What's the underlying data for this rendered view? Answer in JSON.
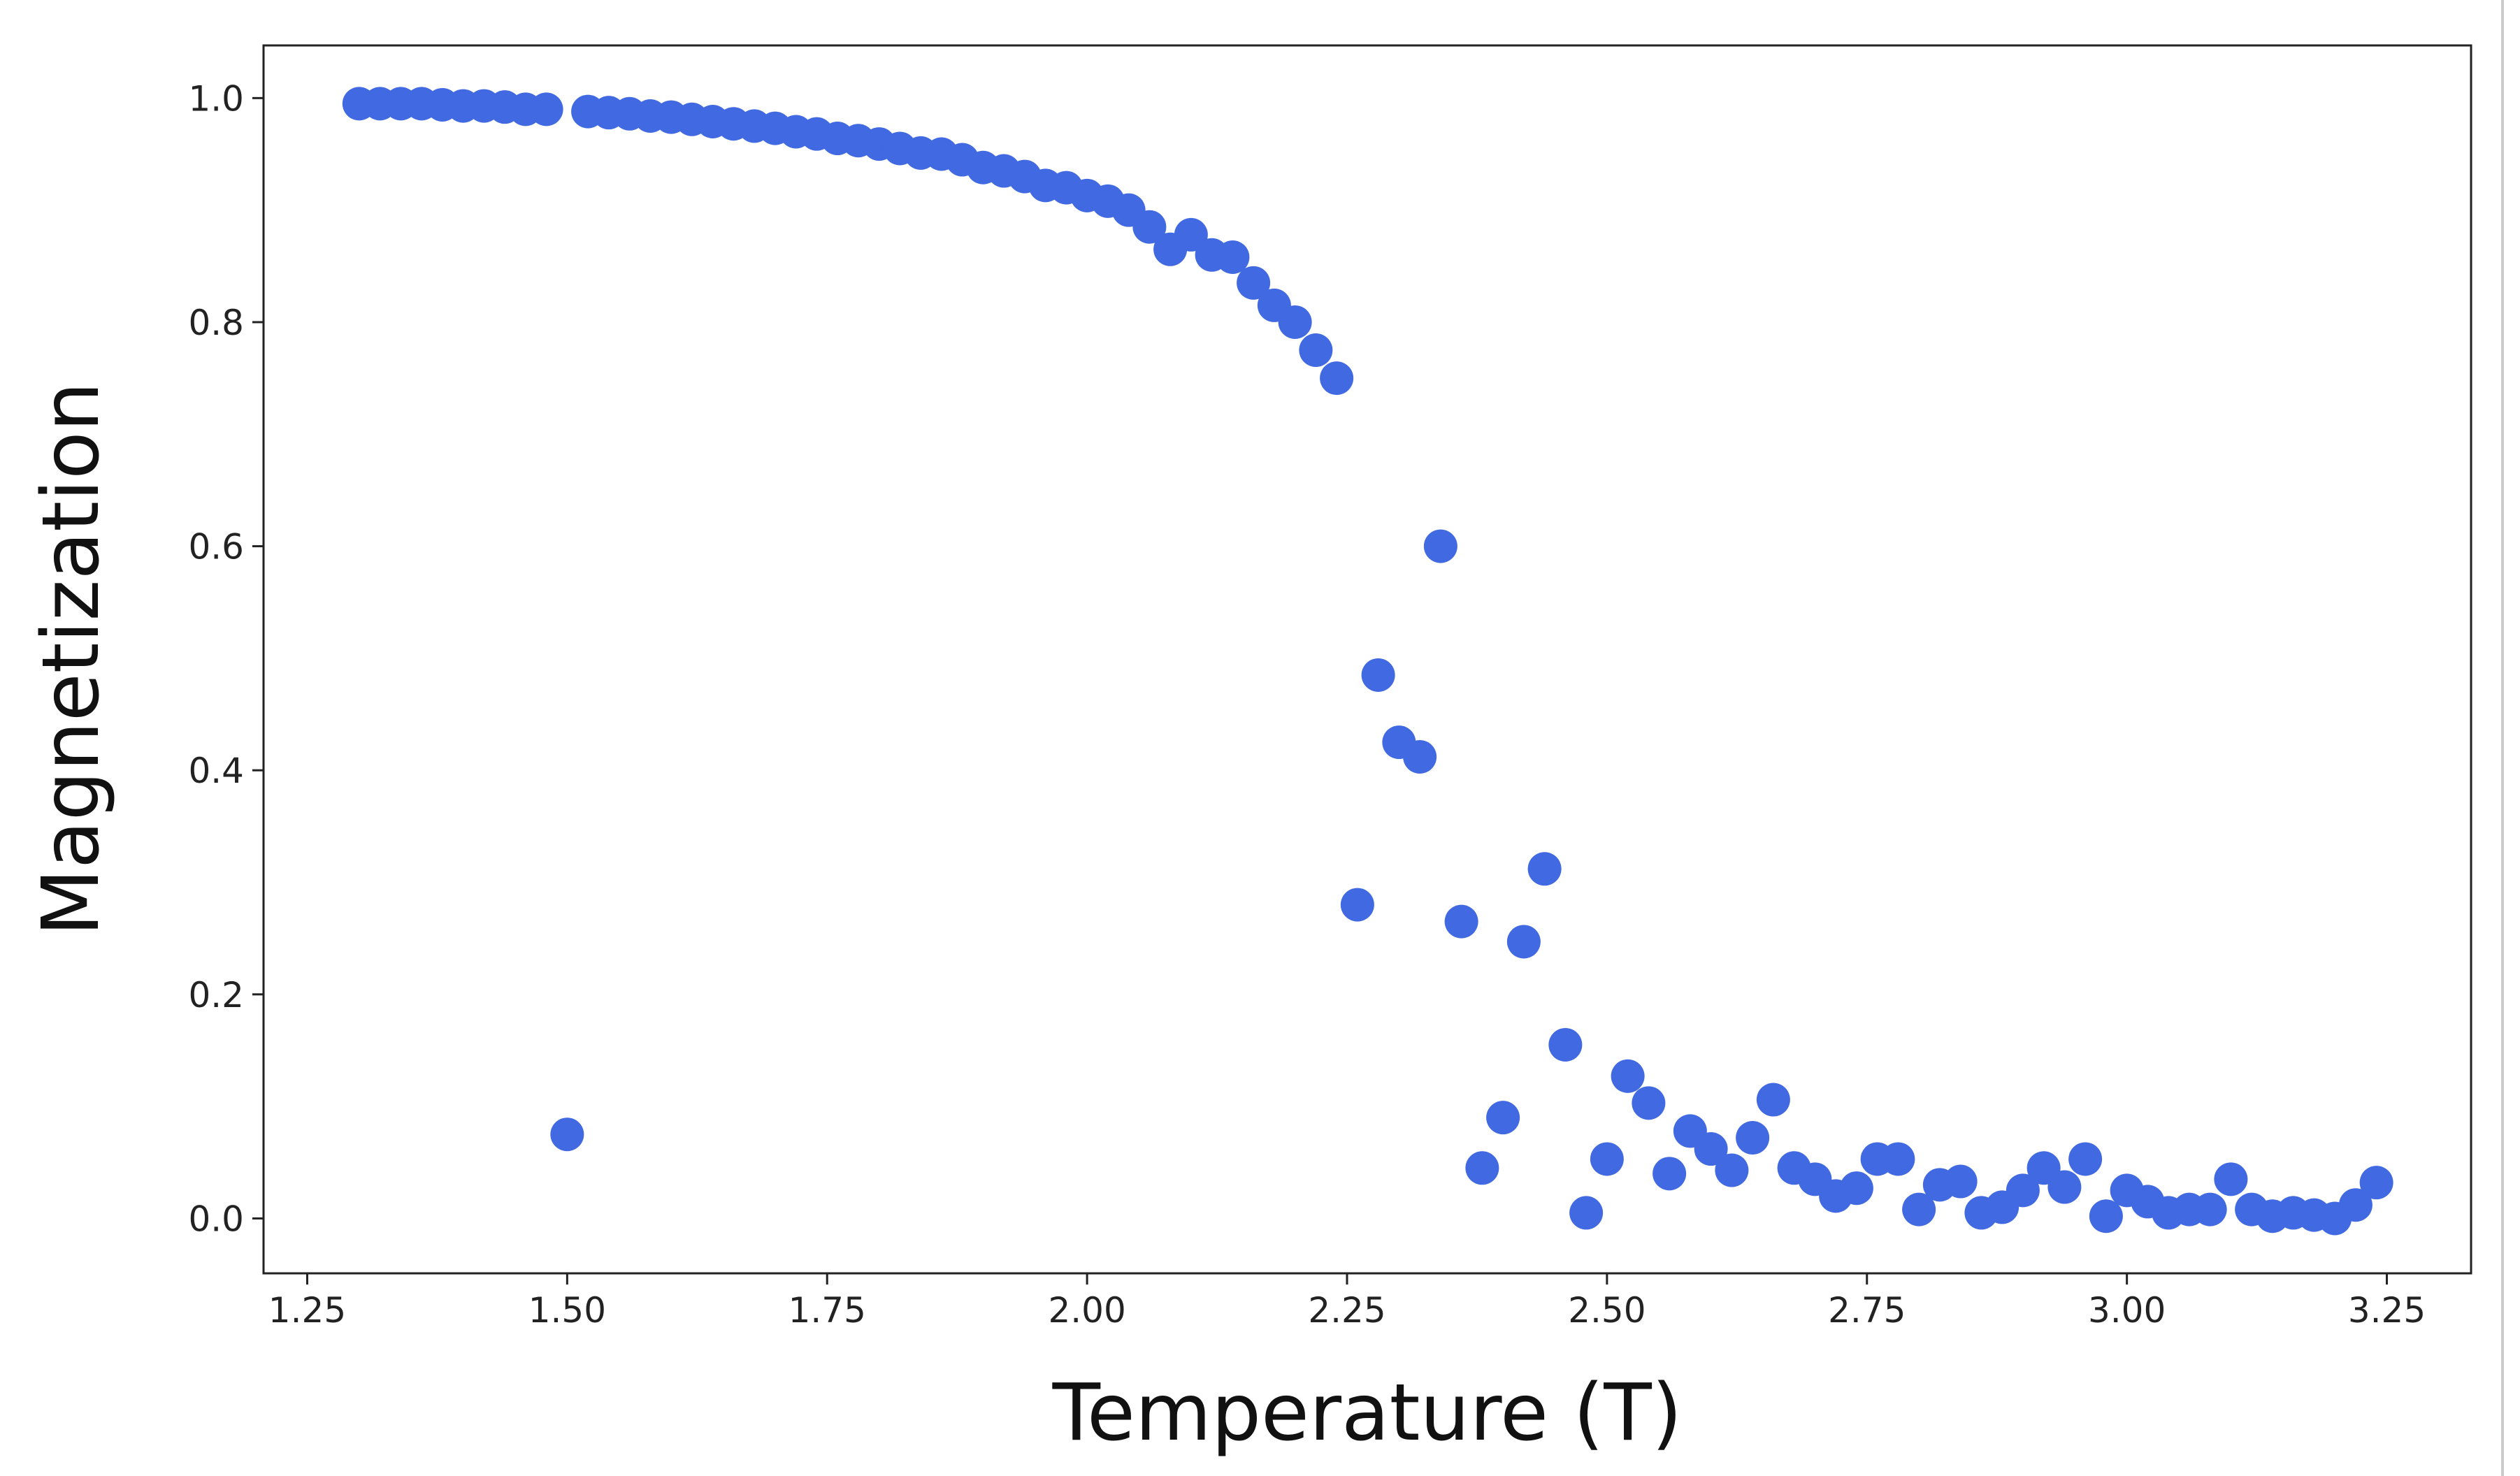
{
  "chart_data": {
    "type": "scatter",
    "x_label": "Temperature (T)",
    "y_label": "Magnetization",
    "color": "#4169e1",
    "x": [
      1.3,
      1.32,
      1.34,
      1.36,
      1.38,
      1.4,
      1.42,
      1.44,
      1.46,
      1.48,
      1.5,
      1.52,
      1.54,
      1.56,
      1.58,
      1.6,
      1.62,
      1.64,
      1.66,
      1.68,
      1.7,
      1.72,
      1.74,
      1.76,
      1.78,
      1.8,
      1.82,
      1.84,
      1.86,
      1.88,
      1.9,
      1.92,
      1.94,
      1.96,
      1.98,
      2.0,
      2.02,
      2.04,
      2.06,
      2.08,
      2.1,
      2.12,
      2.14,
      2.16,
      2.18,
      2.2,
      2.22,
      2.24,
      2.26,
      2.28,
      2.3,
      2.32,
      2.34,
      2.36,
      2.38,
      2.4,
      2.42,
      2.44,
      2.46,
      2.48,
      2.5,
      2.52,
      2.54,
      2.56,
      2.58,
      2.6,
      2.62,
      2.64,
      2.66,
      2.68,
      2.7,
      2.72,
      2.74,
      2.76,
      2.78,
      2.8,
      2.82,
      2.84,
      2.86,
      2.88,
      2.9,
      2.92,
      2.94,
      2.96,
      2.98,
      3.0,
      3.02,
      3.04,
      3.06,
      3.08,
      3.1,
      3.12,
      3.14,
      3.16,
      3.18,
      3.2,
      3.22,
      3.24
    ],
    "values": [
      0.995,
      0.995,
      0.995,
      0.995,
      0.994,
      0.993,
      0.993,
      0.992,
      0.99,
      0.99,
      0.075,
      0.988,
      0.987,
      0.986,
      0.984,
      0.983,
      0.981,
      0.979,
      0.977,
      0.975,
      0.973,
      0.97,
      0.968,
      0.964,
      0.962,
      0.959,
      0.955,
      0.951,
      0.95,
      0.945,
      0.938,
      0.935,
      0.93,
      0.922,
      0.92,
      0.913,
      0.908,
      0.9,
      0.885,
      0.865,
      0.878,
      0.86,
      0.858,
      0.835,
      0.815,
      0.8,
      0.775,
      0.75,
      0.28,
      0.485,
      0.425,
      0.412,
      0.6,
      0.265,
      0.045,
      0.09,
      0.247,
      0.312,
      0.155,
      0.005,
      0.053,
      0.127,
      0.103,
      0.04,
      0.078,
      0.062,
      0.043,
      0.072,
      0.106,
      0.045,
      0.035,
      0.02,
      0.027,
      0.053,
      0.053,
      0.008,
      0.03,
      0.033,
      0.005,
      0.01,
      0.025,
      0.045,
      0.028,
      0.053,
      0.002,
      0.025,
      0.015,
      0.005,
      0.008,
      0.008,
      0.035,
      0.008,
      0.002,
      0.005,
      0.003,
      0.0,
      0.012,
      0.032
    ],
    "xlim": [
      1.208,
      3.331
    ],
    "ylim": [
      -0.049,
      1.047
    ],
    "xticks": [
      {
        "value": 1.25,
        "label": "1.25"
      },
      {
        "value": 1.5,
        "label": "1.50"
      },
      {
        "value": 1.75,
        "label": "1.75"
      },
      {
        "value": 2.0,
        "label": "2.00"
      },
      {
        "value": 2.25,
        "label": "2.25"
      },
      {
        "value": 2.5,
        "label": "2.50"
      },
      {
        "value": 2.75,
        "label": "2.75"
      },
      {
        "value": 3.0,
        "label": "3.00"
      },
      {
        "value": 3.25,
        "label": "3.25"
      }
    ],
    "yticks": [
      {
        "value": 0.0,
        "label": "0.0"
      },
      0.2,
      0.4,
      0.6,
      0.8,
      {
        "value": 1.0,
        "label": "1.0"
      }
    ],
    "grid": false
  }
}
